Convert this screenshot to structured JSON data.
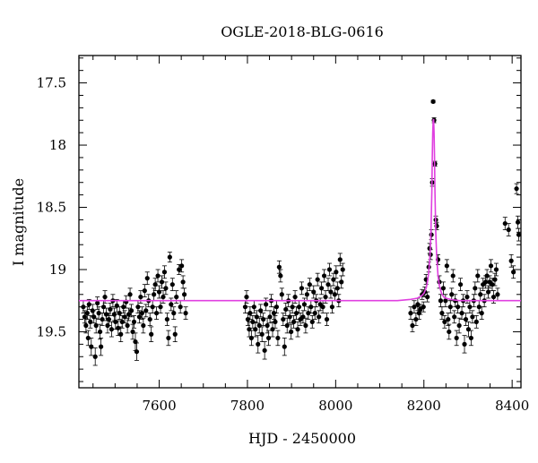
{
  "chart_data": {
    "type": "scatter",
    "title": "OGLE-2018-BLG-0616",
    "xlabel": "HJD - 2450000",
    "ylabel": "I magnitude",
    "xlim": [
      7418,
      8420
    ],
    "ylim": [
      19.95,
      17.28
    ],
    "y_inverted": true,
    "xticks": [
      7600,
      7800,
      8000,
      8200,
      8400
    ],
    "xtick_labels": [
      "7600",
      "7800",
      "8000",
      "8200",
      "8400"
    ],
    "yticks": [
      17.5,
      18,
      18.5,
      19,
      19.5
    ],
    "ytick_labels": [
      "17.5",
      "18",
      "18.5",
      "19",
      "19.5"
    ],
    "colors": {
      "points": "#000000",
      "model": "#e040e0"
    },
    "series": [
      {
        "type": "scatter",
        "points": [
          [
            7428,
            19.3,
            0.05
          ],
          [
            7431,
            19.38,
            0.05
          ],
          [
            7434,
            19.45,
            0.06
          ],
          [
            7437,
            19.35,
            0.05
          ],
          [
            7439,
            19.55,
            0.06
          ],
          [
            7441,
            19.28,
            0.04
          ],
          [
            7444,
            19.42,
            0.05
          ],
          [
            7446,
            19.62,
            0.07
          ],
          [
            7449,
            19.33,
            0.05
          ],
          [
            7452,
            19.38,
            0.05
          ],
          [
            7455,
            19.7,
            0.07
          ],
          [
            7457,
            19.45,
            0.06
          ],
          [
            7460,
            19.27,
            0.05
          ],
          [
            7463,
            19.35,
            0.05
          ],
          [
            7466,
            19.5,
            0.06
          ],
          [
            7468,
            19.62,
            0.07
          ],
          [
            7471,
            19.4,
            0.05
          ],
          [
            7474,
            19.3,
            0.05
          ],
          [
            7477,
            19.22,
            0.05
          ],
          [
            7480,
            19.36,
            0.05
          ],
          [
            7483,
            19.45,
            0.06
          ],
          [
            7486,
            19.4,
            0.05
          ],
          [
            7489,
            19.32,
            0.05
          ],
          [
            7492,
            19.48,
            0.06
          ],
          [
            7495,
            19.25,
            0.05
          ],
          [
            7498,
            19.36,
            0.05
          ],
          [
            7501,
            19.42,
            0.06
          ],
          [
            7504,
            19.29,
            0.05
          ],
          [
            7507,
            19.47,
            0.06
          ],
          [
            7510,
            19.35,
            0.05
          ],
          [
            7513,
            19.52,
            0.06
          ],
          [
            7516,
            19.42,
            0.05
          ],
          [
            7519,
            19.3,
            0.05
          ],
          [
            7522,
            19.38,
            0.05
          ],
          [
            7525,
            19.26,
            0.05
          ],
          [
            7528,
            19.45,
            0.06
          ],
          [
            7531,
            19.36,
            0.05
          ],
          [
            7534,
            19.2,
            0.05
          ],
          [
            7537,
            19.33,
            0.05
          ],
          [
            7540,
            19.5,
            0.06
          ],
          [
            7543,
            19.42,
            0.05
          ],
          [
            7546,
            19.58,
            0.07
          ],
          [
            7549,
            19.66,
            0.07
          ],
          [
            7552,
            19.3,
            0.05
          ],
          [
            7555,
            19.38,
            0.05
          ],
          [
            7558,
            19.22,
            0.05
          ],
          [
            7561,
            19.35,
            0.05
          ],
          [
            7564,
            19.45,
            0.06
          ],
          [
            7567,
            19.17,
            0.05
          ],
          [
            7570,
            19.33,
            0.05
          ],
          [
            7573,
            19.07,
            0.05
          ],
          [
            7576,
            19.25,
            0.05
          ],
          [
            7579,
            19.4,
            0.05
          ],
          [
            7582,
            19.52,
            0.06
          ],
          [
            7585,
            19.3,
            0.05
          ],
          [
            7588,
            19.2,
            0.05
          ],
          [
            7591,
            19.12,
            0.05
          ],
          [
            7594,
            19.35,
            0.05
          ],
          [
            7597,
            19.05,
            0.05
          ],
          [
            7600,
            19.18,
            0.05
          ],
          [
            7603,
            19.3,
            0.05
          ],
          [
            7606,
            19.1,
            0.05
          ],
          [
            7609,
            19.22,
            0.05
          ],
          [
            7612,
            19.02,
            0.05
          ],
          [
            7615,
            19.15,
            0.05
          ],
          [
            7618,
            19.4,
            0.05
          ],
          [
            7621,
            19.55,
            0.06
          ],
          [
            7624,
            18.9,
            0.04
          ],
          [
            7627,
            19.28,
            0.05
          ],
          [
            7630,
            19.12,
            0.05
          ],
          [
            7633,
            19.35,
            0.05
          ],
          [
            7636,
            19.52,
            0.06
          ],
          [
            7639,
            19.22,
            0.05
          ],
          [
            7645,
            19.0,
            0.04
          ],
          [
            7648,
            19.3,
            0.05
          ],
          [
            7651,
            18.97,
            0.05
          ],
          [
            7654,
            19.1,
            0.05
          ],
          [
            7657,
            19.2,
            0.05
          ],
          [
            7660,
            19.35,
            0.05
          ],
          [
            7795,
            19.3,
            0.05
          ],
          [
            7798,
            19.22,
            0.05
          ],
          [
            7801,
            19.4,
            0.05
          ],
          [
            7804,
            19.48,
            0.06
          ],
          [
            7806,
            19.35,
            0.05
          ],
          [
            7809,
            19.55,
            0.06
          ],
          [
            7812,
            19.42,
            0.05
          ],
          [
            7815,
            19.3,
            0.05
          ],
          [
            7818,
            19.48,
            0.06
          ],
          [
            7821,
            19.38,
            0.05
          ],
          [
            7824,
            19.6,
            0.07
          ],
          [
            7827,
            19.45,
            0.06
          ],
          [
            7830,
            19.33,
            0.05
          ],
          [
            7833,
            19.52,
            0.06
          ],
          [
            7836,
            19.4,
            0.05
          ],
          [
            7839,
            19.65,
            0.07
          ],
          [
            7842,
            19.28,
            0.05
          ],
          [
            7845,
            19.45,
            0.06
          ],
          [
            7848,
            19.55,
            0.06
          ],
          [
            7851,
            19.38,
            0.05
          ],
          [
            7854,
            19.25,
            0.05
          ],
          [
            7857,
            19.48,
            0.06
          ],
          [
            7860,
            19.35,
            0.05
          ],
          [
            7863,
            19.42,
            0.05
          ],
          [
            7866,
            19.3,
            0.05
          ],
          [
            7869,
            19.55,
            0.06
          ],
          [
            7872,
            18.98,
            0.05
          ],
          [
            7875,
            19.05,
            0.05
          ],
          [
            7878,
            19.2,
            0.05
          ],
          [
            7881,
            19.4,
            0.05
          ],
          [
            7884,
            19.62,
            0.07
          ],
          [
            7887,
            19.32,
            0.05
          ],
          [
            7890,
            19.45,
            0.06
          ],
          [
            7893,
            19.25,
            0.05
          ],
          [
            7896,
            19.38,
            0.05
          ],
          [
            7899,
            19.5,
            0.06
          ],
          [
            7902,
            19.3,
            0.05
          ],
          [
            7905,
            19.42,
            0.05
          ],
          [
            7908,
            19.22,
            0.05
          ],
          [
            7911,
            19.35,
            0.05
          ],
          [
            7914,
            19.48,
            0.06
          ],
          [
            7917,
            19.3,
            0.05
          ],
          [
            7920,
            19.4,
            0.05
          ],
          [
            7923,
            19.15,
            0.05
          ],
          [
            7926,
            19.38,
            0.05
          ],
          [
            7929,
            19.28,
            0.05
          ],
          [
            7932,
            19.45,
            0.06
          ],
          [
            7935,
            19.2,
            0.05
          ],
          [
            7938,
            19.35,
            0.05
          ],
          [
            7941,
            19.12,
            0.05
          ],
          [
            7944,
            19.3,
            0.05
          ],
          [
            7947,
            19.42,
            0.05
          ],
          [
            7950,
            19.18,
            0.05
          ],
          [
            7953,
            19.35,
            0.05
          ],
          [
            7956,
            19.25,
            0.05
          ],
          [
            7959,
            19.08,
            0.05
          ],
          [
            7962,
            19.38,
            0.05
          ],
          [
            7965,
            19.28,
            0.05
          ],
          [
            7968,
            19.15,
            0.05
          ],
          [
            7971,
            19.3,
            0.05
          ],
          [
            7974,
            19.05,
            0.05
          ],
          [
            7977,
            19.22,
            0.05
          ],
          [
            7980,
            19.4,
            0.05
          ],
          [
            7983,
            19.12,
            0.05
          ],
          [
            7986,
            19.0,
            0.05
          ],
          [
            7989,
            19.18,
            0.05
          ],
          [
            7992,
            19.3,
            0.05
          ],
          [
            7995,
            19.08,
            0.05
          ],
          [
            7998,
            19.2,
            0.05
          ],
          [
            8001,
            19.02,
            0.05
          ],
          [
            8004,
            19.15,
            0.05
          ],
          [
            8007,
            19.25,
            0.05
          ],
          [
            8010,
            18.92,
            0.05
          ],
          [
            8013,
            19.1,
            0.05
          ],
          [
            8016,
            19.0,
            0.05
          ],
          [
            8170,
            19.35,
            0.05
          ],
          [
            8174,
            19.45,
            0.05
          ],
          [
            8178,
            19.3,
            0.05
          ],
          [
            8182,
            19.4,
            0.05
          ],
          [
            8186,
            19.28,
            0.05
          ],
          [
            8189,
            19.35,
            0.05
          ],
          [
            8192,
            19.32,
            0.04
          ],
          [
            8196,
            19.2,
            0.04
          ],
          [
            8199,
            19.3,
            0.04
          ],
          [
            8202,
            19.18,
            0.04
          ],
          [
            8205,
            19.08,
            0.04
          ],
          [
            8208,
            19.22,
            0.04
          ],
          [
            8211,
            18.98,
            0.04
          ],
          [
            8213,
            18.83,
            0.04
          ],
          [
            8215,
            18.88,
            0.04
          ],
          [
            8217,
            18.72,
            0.04
          ],
          [
            8219,
            18.3,
            0.03
          ],
          [
            8221,
            17.65,
            0.01
          ],
          [
            8223,
            17.8,
            0.02
          ],
          [
            8225,
            18.15,
            0.02
          ],
          [
            8227,
            18.6,
            0.03
          ],
          [
            8229,
            18.65,
            0.03
          ],
          [
            8232,
            18.92,
            0.04
          ],
          [
            8235,
            19.1,
            0.05
          ],
          [
            8238,
            19.25,
            0.05
          ],
          [
            8241,
            19.35,
            0.05
          ],
          [
            8244,
            19.15,
            0.05
          ],
          [
            8247,
            19.42,
            0.05
          ],
          [
            8249,
            19.25,
            0.05
          ],
          [
            8252,
            18.97,
            0.05
          ],
          [
            8255,
            19.4,
            0.05
          ],
          [
            8257,
            19.5,
            0.06
          ],
          [
            8260,
            19.3,
            0.05
          ],
          [
            8263,
            19.2,
            0.05
          ],
          [
            8266,
            19.05,
            0.05
          ],
          [
            8269,
            19.38,
            0.05
          ],
          [
            8271,
            19.25,
            0.05
          ],
          [
            8274,
            19.55,
            0.06
          ],
          [
            8277,
            19.3,
            0.05
          ],
          [
            8280,
            19.45,
            0.06
          ],
          [
            8283,
            19.12,
            0.05
          ],
          [
            8286,
            19.35,
            0.05
          ],
          [
            8289,
            19.25,
            0.05
          ],
          [
            8292,
            19.6,
            0.07
          ],
          [
            8295,
            19.4,
            0.05
          ],
          [
            8298,
            19.22,
            0.05
          ],
          [
            8301,
            19.48,
            0.06
          ],
          [
            8304,
            19.3,
            0.05
          ],
          [
            8307,
            19.55,
            0.06
          ],
          [
            8310,
            19.38,
            0.05
          ],
          [
            8313,
            19.25,
            0.05
          ],
          [
            8316,
            19.15,
            0.05
          ],
          [
            8319,
            19.42,
            0.05
          ],
          [
            8322,
            19.05,
            0.05
          ],
          [
            8325,
            19.3,
            0.05
          ],
          [
            8328,
            19.2,
            0.05
          ],
          [
            8331,
            19.35,
            0.05
          ],
          [
            8334,
            19.12,
            0.05
          ],
          [
            8337,
            19.25,
            0.05
          ],
          [
            8340,
            19.1,
            0.05
          ],
          [
            8343,
            19.05,
            0.05
          ],
          [
            8346,
            19.18,
            0.05
          ],
          [
            8349,
            19.1,
            0.05
          ],
          [
            8352,
            18.97,
            0.05
          ],
          [
            8355,
            19.12,
            0.05
          ],
          [
            8358,
            19.22,
            0.05
          ],
          [
            8361,
            19.08,
            0.05
          ],
          [
            8364,
            19.0,
            0.05
          ],
          [
            8367,
            19.2,
            0.05
          ],
          [
            8384,
            18.63,
            0.05
          ],
          [
            8392,
            18.68,
            0.05
          ],
          [
            8398,
            18.93,
            0.05
          ],
          [
            8403,
            19.02,
            0.05
          ],
          [
            8410,
            18.35,
            0.04
          ],
          [
            8413,
            18.62,
            0.05
          ],
          [
            8415,
            18.72,
            0.05
          ]
        ]
      },
      {
        "type": "line",
        "x": [
          7418,
          8140,
          8170,
          8185,
          8195,
          8200,
          8205,
          8208,
          8211,
          8214,
          8216,
          8218,
          8219,
          8220,
          8221,
          8222,
          8223,
          8224,
          8225,
          8227,
          8229,
          8232,
          8235,
          8240,
          8245,
          8250,
          8260,
          8280,
          8300,
          8420
        ],
        "y": [
          19.25,
          19.25,
          19.24,
          19.23,
          19.21,
          19.19,
          19.15,
          19.1,
          19.02,
          18.88,
          18.7,
          18.38,
          18.1,
          17.9,
          17.8,
          17.79,
          17.9,
          18.1,
          18.38,
          18.7,
          18.9,
          19.05,
          19.13,
          19.19,
          19.22,
          19.23,
          19.24,
          19.25,
          19.25,
          19.25
        ]
      }
    ]
  }
}
